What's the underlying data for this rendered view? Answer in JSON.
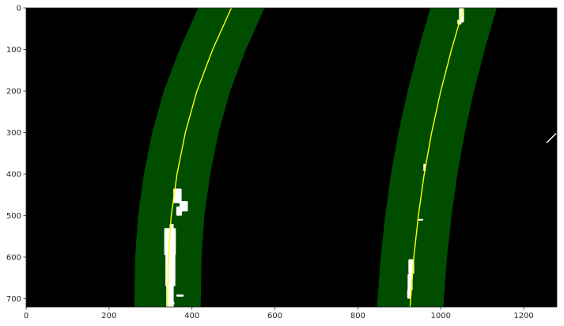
{
  "chart_data": {
    "type": "image_overlay",
    "title": "",
    "xlabel": "",
    "ylabel": "",
    "xlim": [
      0,
      1280
    ],
    "ylim": [
      720,
      0
    ],
    "y_inverted": true,
    "grid": false,
    "xticks": [
      0,
      200,
      400,
      600,
      800,
      1000,
      1200
    ],
    "yticks": [
      0,
      100,
      200,
      300,
      400,
      500,
      600,
      700
    ],
    "xtick_labels": [
      "0",
      "200",
      "400",
      "600",
      "800",
      "1000",
      "1200"
    ],
    "ytick_labels": [
      "0",
      "100",
      "200",
      "300",
      "400",
      "500",
      "600",
      "700"
    ],
    "background_color": "#000000",
    "window_color": "#004d00",
    "fit_line_color": "#ffff00",
    "pixel_color": "#ffffff",
    "search_margin": 80,
    "lane_fits": [
      {
        "name": "left",
        "points": [
          {
            "y": 0,
            "x": 495
          },
          {
            "y": 100,
            "x": 450
          },
          {
            "y": 200,
            "x": 412
          },
          {
            "y": 300,
            "x": 384
          },
          {
            "y": 400,
            "x": 364
          },
          {
            "y": 500,
            "x": 350
          },
          {
            "y": 600,
            "x": 343
          },
          {
            "y": 720,
            "x": 341
          }
        ]
      },
      {
        "name": "right",
        "points": [
          {
            "y": 0,
            "x": 1055
          },
          {
            "y": 100,
            "x": 1026
          },
          {
            "y": 200,
            "x": 1000
          },
          {
            "y": 300,
            "x": 978
          },
          {
            "y": 400,
            "x": 960
          },
          {
            "y": 500,
            "x": 946
          },
          {
            "y": 600,
            "x": 935
          },
          {
            "y": 720,
            "x": 926
          }
        ]
      }
    ],
    "pixel_regions": [
      {
        "x": 355,
        "y": 435,
        "w": 20,
        "h": 35
      },
      {
        "x": 370,
        "y": 465,
        "w": 20,
        "h": 25
      },
      {
        "x": 362,
        "y": 478,
        "w": 14,
        "h": 22
      },
      {
        "x": 333,
        "y": 530,
        "w": 28,
        "h": 65
      },
      {
        "x": 336,
        "y": 590,
        "w": 24,
        "h": 80
      },
      {
        "x": 338,
        "y": 665,
        "w": 18,
        "h": 55
      },
      {
        "x": 346,
        "y": 520,
        "w": 10,
        "h": 15
      },
      {
        "x": 348,
        "y": 708,
        "w": 10,
        "h": 6
      },
      {
        "x": 362,
        "y": 690,
        "w": 18,
        "h": 5
      },
      {
        "x": 1044,
        "y": 0,
        "w": 12,
        "h": 35
      },
      {
        "x": 1040,
        "y": 28,
        "w": 10,
        "h": 12
      },
      {
        "x": 958,
        "y": 375,
        "w": 6,
        "h": 18
      },
      {
        "x": 944,
        "y": 508,
        "w": 14,
        "h": 4
      },
      {
        "x": 922,
        "y": 605,
        "w": 14,
        "h": 35
      },
      {
        "x": 920,
        "y": 640,
        "w": 12,
        "h": 40
      },
      {
        "x": 919,
        "y": 678,
        "w": 10,
        "h": 22
      }
    ],
    "pixel_segments": [
      {
        "x1": 1255,
        "y1": 325,
        "x2": 1278,
        "y2": 302
      }
    ]
  }
}
